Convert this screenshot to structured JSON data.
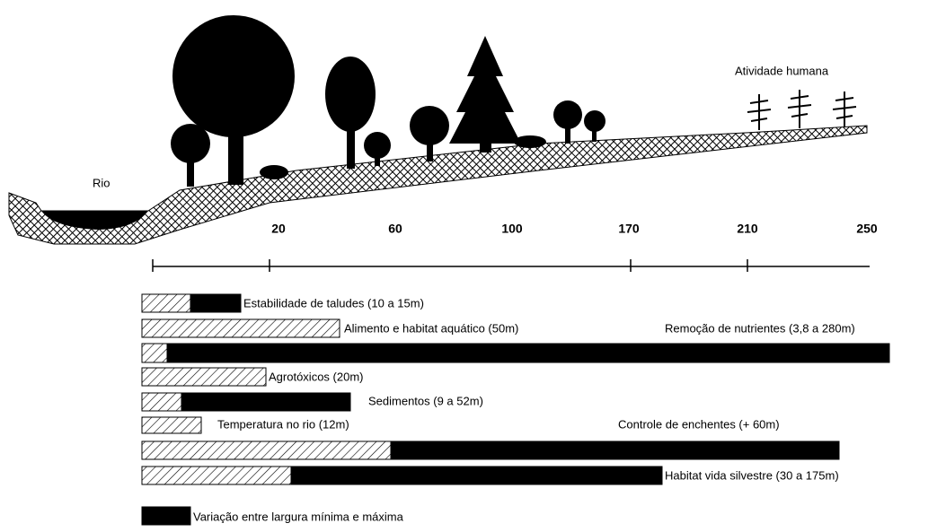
{
  "labels": {
    "river": "Rio",
    "human_activity": "Atividade humana"
  },
  "axis": {
    "ticks": [
      "20",
      "60",
      "100",
      "170",
      "210",
      "250"
    ]
  },
  "functions": [
    "Estabilidade de taludes  (10 a 15m)",
    "Alimento e habitat aquático  (50m)",
    "Remoção de nutrientes  (3,8 a 280m)",
    "Agrotóxicos  (20m)",
    "Sedimentos  (9 a 52m)",
    "Temperatura no rio  (12m)",
    "Controle de enchentes  (+ 60m)",
    "Habitat vida silvestre  (30 a 175m)"
  ],
  "legend": "Variação entre largura mínima e máxima"
}
